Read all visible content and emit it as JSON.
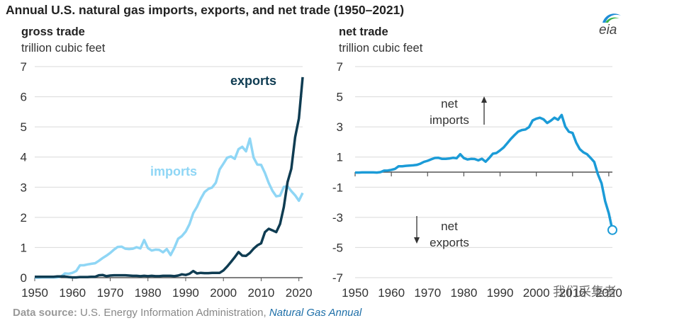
{
  "title": "Annual U.S. natural gas imports, exports, and net trade (1950–2021)",
  "source": {
    "label": "Data source:",
    "text": "U.S. Energy Information Administration,",
    "link": "Natural Gas Annual"
  },
  "logo_text": "eia",
  "watermark": "我们采集者",
  "colors": {
    "imports": "#8fd6f5",
    "exports": "#0f3c52",
    "net": "#1b9bd7",
    "grid": "#d9d9d9",
    "axis": "#555555"
  },
  "chart_data": [
    {
      "type": "line",
      "subtitle": "gross trade",
      "ylabel": "trillion cubic feet",
      "xlim": [
        1950,
        2021
      ],
      "ylim": [
        0,
        7
      ],
      "x_ticks": [
        1950,
        1960,
        1970,
        1980,
        1990,
        2000,
        2010,
        2020
      ],
      "y_ticks": [
        0,
        1,
        2,
        3,
        4,
        5,
        6,
        7
      ],
      "grid": true,
      "series": [
        {
          "name": "imports",
          "x": [
            1950,
            1951,
            1952,
            1953,
            1954,
            1955,
            1956,
            1957,
            1958,
            1959,
            1960,
            1961,
            1962,
            1963,
            1964,
            1965,
            1966,
            1967,
            1968,
            1969,
            1970,
            1971,
            1972,
            1973,
            1974,
            1975,
            1976,
            1977,
            1978,
            1979,
            1980,
            1981,
            1982,
            1983,
            1984,
            1985,
            1986,
            1987,
            1988,
            1989,
            1990,
            1991,
            1992,
            1993,
            1994,
            1995,
            1996,
            1997,
            1998,
            1999,
            2000,
            2001,
            2002,
            2003,
            2004,
            2005,
            2006,
            2007,
            2008,
            2009,
            2010,
            2011,
            2012,
            2013,
            2014,
            2015,
            2016,
            2017,
            2018,
            2019,
            2020,
            2021
          ],
          "values": [
            0.0,
            0.0,
            0.01,
            0.01,
            0.01,
            0.01,
            0.01,
            0.04,
            0.14,
            0.13,
            0.16,
            0.22,
            0.41,
            0.41,
            0.44,
            0.46,
            0.48,
            0.56,
            0.65,
            0.73,
            0.82,
            0.93,
            1.02,
            1.03,
            0.96,
            0.95,
            0.96,
            1.01,
            0.97,
            1.25,
            0.98,
            0.9,
            0.93,
            0.92,
            0.84,
            0.95,
            0.75,
            0.99,
            1.29,
            1.38,
            1.53,
            1.77,
            2.14,
            2.35,
            2.62,
            2.84,
            2.94,
            2.99,
            3.15,
            3.59,
            3.78,
            3.98,
            4.02,
            3.94,
            4.26,
            4.34,
            4.19,
            4.61,
            3.98,
            3.75,
            3.74,
            3.47,
            3.14,
            2.88,
            2.7,
            2.72,
            3.01,
            3.03,
            2.87,
            2.73,
            2.55,
            2.81
          ]
        },
        {
          "name": "exports",
          "x": [
            1950,
            1951,
            1952,
            1953,
            1954,
            1955,
            1956,
            1957,
            1958,
            1959,
            1960,
            1961,
            1962,
            1963,
            1964,
            1965,
            1966,
            1967,
            1968,
            1969,
            1970,
            1971,
            1972,
            1973,
            1974,
            1975,
            1976,
            1977,
            1978,
            1979,
            1980,
            1981,
            1982,
            1983,
            1984,
            1985,
            1986,
            1987,
            1988,
            1989,
            1990,
            1991,
            1992,
            1993,
            1994,
            1995,
            1996,
            1997,
            1998,
            1999,
            2000,
            2001,
            2002,
            2003,
            2004,
            2005,
            2006,
            2007,
            2008,
            2009,
            2010,
            2011,
            2012,
            2013,
            2014,
            2015,
            2016,
            2017,
            2018,
            2019,
            2020,
            2021
          ],
          "values": [
            0.03,
            0.03,
            0.03,
            0.03,
            0.03,
            0.03,
            0.04,
            0.04,
            0.04,
            0.02,
            0.01,
            0.01,
            0.02,
            0.02,
            0.02,
            0.03,
            0.03,
            0.08,
            0.09,
            0.05,
            0.07,
            0.08,
            0.08,
            0.08,
            0.08,
            0.07,
            0.06,
            0.06,
            0.05,
            0.06,
            0.05,
            0.06,
            0.05,
            0.05,
            0.06,
            0.06,
            0.06,
            0.05,
            0.07,
            0.11,
            0.09,
            0.13,
            0.22,
            0.14,
            0.16,
            0.15,
            0.15,
            0.16,
            0.16,
            0.16,
            0.24,
            0.37,
            0.52,
            0.68,
            0.85,
            0.73,
            0.72,
            0.82,
            0.96,
            1.07,
            1.14,
            1.51,
            1.62,
            1.57,
            1.51,
            1.78,
            2.34,
            3.17,
            3.61,
            4.66,
            5.28,
            6.65
          ]
        }
      ]
    },
    {
      "type": "line",
      "subtitle": "net trade",
      "ylabel": "trillion cubic feet",
      "xlim": [
        1950,
        2021
      ],
      "ylim": [
        -7,
        7
      ],
      "x_ticks": [
        1950,
        1960,
        1970,
        1980,
        1990,
        2000,
        2010,
        2020
      ],
      "y_ticks": [
        -7,
        -5,
        -3,
        -1,
        1,
        3,
        5,
        7
      ],
      "grid": true,
      "annotations": [
        {
          "text": [
            "net",
            "imports"
          ],
          "x": 1976,
          "y": 3.9,
          "arrow": "up"
        },
        {
          "text": [
            "net",
            "exports"
          ],
          "x": 1976,
          "y": -3.7,
          "arrow": "down"
        }
      ],
      "series": [
        {
          "name": "net imports",
          "x": [
            1950,
            1951,
            1952,
            1953,
            1954,
            1955,
            1956,
            1957,
            1958,
            1959,
            1960,
            1961,
            1962,
            1963,
            1964,
            1965,
            1966,
            1967,
            1968,
            1969,
            1970,
            1971,
            1972,
            1973,
            1974,
            1975,
            1976,
            1977,
            1978,
            1979,
            1980,
            1981,
            1982,
            1983,
            1984,
            1985,
            1986,
            1987,
            1988,
            1989,
            1990,
            1991,
            1992,
            1993,
            1994,
            1995,
            1996,
            1997,
            1998,
            1999,
            2000,
            2001,
            2002,
            2003,
            2004,
            2005,
            2006,
            2007,
            2008,
            2009,
            2010,
            2011,
            2012,
            2013,
            2014,
            2015,
            2016,
            2017,
            2018,
            2019,
            2020,
            2021
          ],
          "values": [
            -0.03,
            -0.03,
            -0.02,
            -0.02,
            -0.02,
            -0.02,
            -0.03,
            0.0,
            0.1,
            0.11,
            0.15,
            0.21,
            0.39,
            0.39,
            0.42,
            0.43,
            0.45,
            0.48,
            0.56,
            0.68,
            0.75,
            0.85,
            0.94,
            0.95,
            0.88,
            0.88,
            0.9,
            0.95,
            0.92,
            1.19,
            0.93,
            0.84,
            0.88,
            0.87,
            0.78,
            0.89,
            0.69,
            0.94,
            1.22,
            1.27,
            1.44,
            1.64,
            1.92,
            2.21,
            2.46,
            2.69,
            2.79,
            2.83,
            2.99,
            3.43,
            3.54,
            3.61,
            3.5,
            3.26,
            3.41,
            3.61,
            3.47,
            3.79,
            3.02,
            2.68,
            2.6,
            1.96,
            1.52,
            1.31,
            1.19,
            0.94,
            0.67,
            -0.14,
            -0.74,
            -1.93,
            -2.73,
            -3.84
          ]
        }
      ]
    }
  ]
}
